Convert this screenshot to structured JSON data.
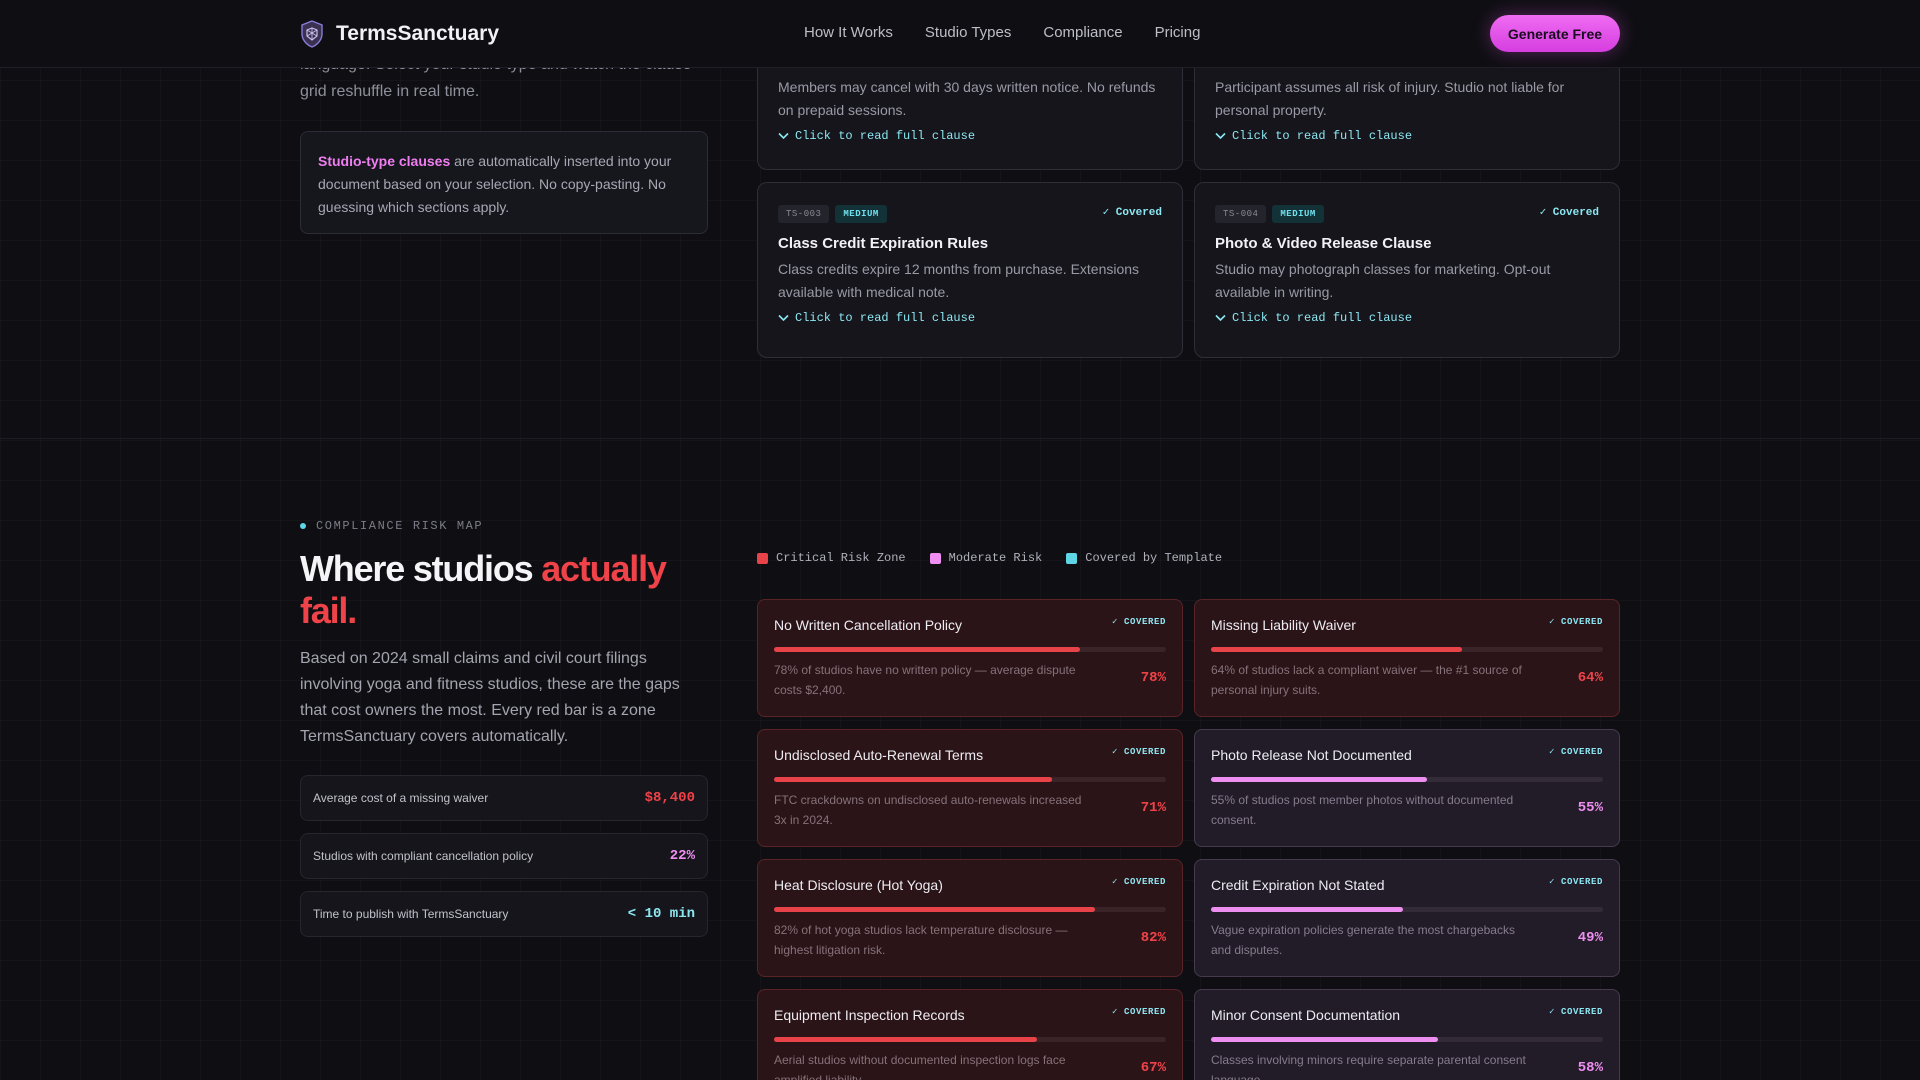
{
  "nav": {
    "brand": "TermsSanctuary",
    "links": [
      "How It Works",
      "Studio Types",
      "Compliance",
      "Pricing"
    ],
    "cta": "Generate Free"
  },
  "intro": {
    "text": "language. Select your studio type and watch the clause grid reshuffle in real time.",
    "box_strong": "Studio-type clauses",
    "box_rest": " are automatically inserted into your document based on your selection. No copy-pasting. No guessing which sections apply."
  },
  "clauses_partial": [
    {
      "body": "Members may cancel with 30 days written notice. No refunds on prepaid sessions.",
      "link": "Click to read full clause"
    },
    {
      "body": "Participant assumes all risk of injury. Studio not liable for personal property.",
      "link": "Click to read full clause"
    }
  ],
  "clauses": [
    {
      "id": "TS-003",
      "severity": "MEDIUM",
      "status": "✓ Covered",
      "title": "Class Credit Expiration Rules",
      "body": "Class credits expire 12 months from purchase. Extensions available with medical note.",
      "link": "Click to read full clause"
    },
    {
      "id": "TS-004",
      "severity": "MEDIUM",
      "status": "✓ Covered",
      "title": "Photo & Video Release Clause",
      "body": "Studio may photograph classes for marketing. Opt-out available in writing.",
      "link": "Click to read full clause"
    }
  ],
  "risk_section": {
    "eyebrow": "COMPLIANCE RISK MAP",
    "headline_main": "Where studios ",
    "headline_accent": "actually fail.",
    "description": "Based on 2024 small claims and civil court filings involving yoga and fitness studios, these are the gaps that cost owners the most. Every red bar is a zone TermsSanctuary covers automatically.",
    "stats": [
      {
        "label": "Average cost of a missing waiver",
        "value": "$8,400",
        "color": "#ef4349"
      },
      {
        "label": "Studios with compliant cancellation policy",
        "value": "22%",
        "color": "#ef8ef1"
      },
      {
        "label": "Time to publish with TermsSanctuary",
        "value": "< 10 min",
        "color": "#8ce7f2"
      }
    ],
    "legend": [
      {
        "label": "Critical Risk Zone",
        "color": "#e84349"
      },
      {
        "label": "Moderate Risk",
        "color": "#ef8ef1"
      },
      {
        "label": "Covered by Template",
        "color": "#5fd6e6"
      }
    ],
    "risks": [
      {
        "title": "No Written Cancellation Policy",
        "covered": "✓ COVERED",
        "desc": "78% of studios have no written policy — average dispute costs $2,400.",
        "pct": "78%",
        "value": 0.78,
        "level": "crit"
      },
      {
        "title": "Missing Liability Waiver",
        "covered": "✓ COVERED",
        "desc": "64% of studios lack a compliant waiver — the #1 source of personal injury suits.",
        "pct": "64%",
        "value": 0.64,
        "level": "crit"
      },
      {
        "title": "Undisclosed Auto-Renewal Terms",
        "covered": "✓ COVERED",
        "desc": "FTC crackdowns on undisclosed auto-renewals increased 3x in 2024.",
        "pct": "71%",
        "value": 0.71,
        "level": "crit"
      },
      {
        "title": "Photo Release Not Documented",
        "covered": "✓ COVERED",
        "desc": "55% of studios post member photos without documented consent.",
        "pct": "55%",
        "value": 0.55,
        "level": "mod"
      },
      {
        "title": "Heat Disclosure (Hot Yoga)",
        "covered": "✓ COVERED",
        "desc": "82% of hot yoga studios lack temperature disclosure — highest litigation risk.",
        "pct": "82%",
        "value": 0.82,
        "level": "crit"
      },
      {
        "title": "Credit Expiration Not Stated",
        "covered": "✓ COVERED",
        "desc": "Vague expiration policies generate the most chargebacks and disputes.",
        "pct": "49%",
        "value": 0.49,
        "level": "mod"
      },
      {
        "title": "Equipment Inspection Records",
        "covered": "✓ COVERED",
        "desc": "Aerial studios without documented inspection logs face amplified liability.",
        "pct": "67%",
        "value": 0.67,
        "level": "crit"
      },
      {
        "title": "Minor Consent Documentation",
        "covered": "✓ COVERED",
        "desc": "Classes involving minors require separate parental consent language.",
        "pct": "58%",
        "value": 0.58,
        "level": "mod"
      }
    ]
  }
}
